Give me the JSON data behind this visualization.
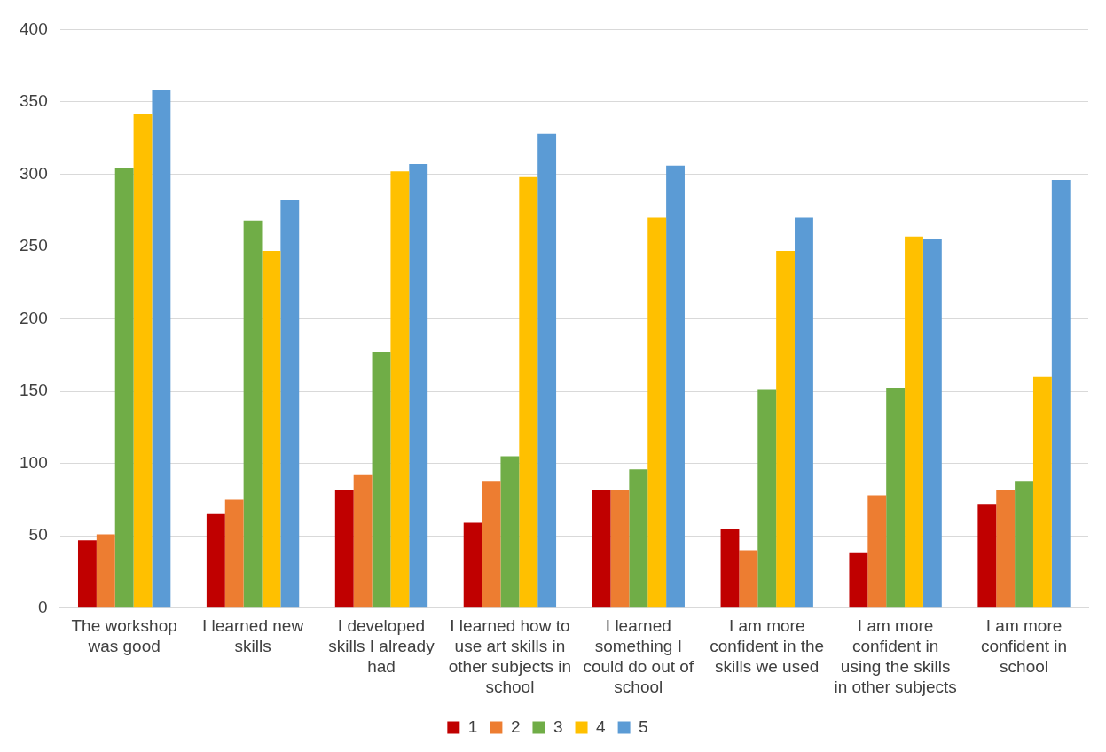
{
  "chart_data": {
    "type": "bar",
    "categories": [
      "The workshop was good",
      "I learned new skills",
      "I developed skills I already had",
      "I learned how to use art skills in other subjects in school",
      "I learned something I could do out of school",
      "I am more confident in the skills we used",
      "I am more confident in using the skills in other subjects",
      "I am more confident in school"
    ],
    "series": [
      {
        "name": "1",
        "color": "#c00000",
        "values": [
          47,
          65,
          82,
          59,
          82,
          55,
          38,
          72
        ]
      },
      {
        "name": "2",
        "color": "#ed7d31",
        "values": [
          51,
          75,
          92,
          88,
          82,
          40,
          78,
          82
        ]
      },
      {
        "name": "3",
        "color": "#70ad47",
        "values": [
          304,
          268,
          177,
          105,
          96,
          151,
          152,
          88
        ]
      },
      {
        "name": "4",
        "color": "#ffc000",
        "values": [
          342,
          247,
          302,
          298,
          270,
          247,
          257,
          160
        ]
      },
      {
        "name": "5",
        "color": "#5b9bd5",
        "values": [
          358,
          282,
          307,
          328,
          306,
          270,
          255,
          296
        ]
      }
    ],
    "ylim": [
      0,
      400
    ],
    "yticks": [
      0,
      50,
      100,
      150,
      200,
      250,
      300,
      350,
      400
    ],
    "grid": "y",
    "legend": "bottom"
  }
}
